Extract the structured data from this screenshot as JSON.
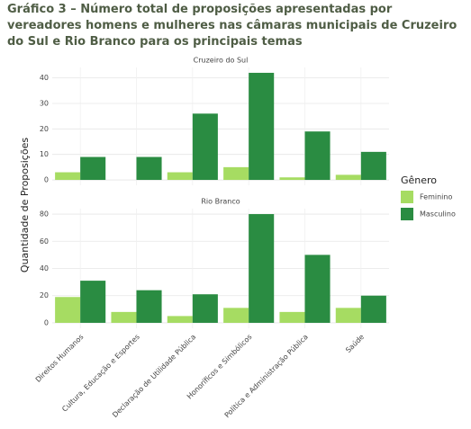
{
  "title": "Gráfico 3 – Número total de proposições apresentadas por vereadores homens e mulheres nas câmaras municipais de Cruzeiro do Sul e Rio Branco para os principais temas",
  "chart_data": {
    "type": "bar",
    "ylabel": "Quantidade de Proposições",
    "legend_title": "Gênero",
    "categories": [
      "Direitos Humanos",
      "Cultura, Educação e Esportes",
      "Declaração de Utilidade Pública",
      "Honoríficos e Simbólicos",
      "Política e Administração Pública",
      "Saúde"
    ],
    "series": [
      {
        "name": "Feminino",
        "color": "#a6dc62"
      },
      {
        "name": "Masculino",
        "color": "#2a8c42"
      }
    ],
    "grid": true,
    "facets": [
      {
        "title": "Cruzeiro do Sul",
        "ylim": [
          -2.1,
          44.1
        ],
        "yticks": [
          0,
          10,
          20,
          30,
          40
        ],
        "series_values": [
          [
            3,
            0,
            3,
            5,
            1,
            2
          ],
          [
            9,
            9,
            26,
            42,
            19,
            11
          ]
        ]
      },
      {
        "title": "Rio Branco",
        "ylim": [
          -4,
          84
        ],
        "yticks": [
          0,
          20,
          40,
          60,
          80
        ],
        "series_values": [
          [
            19,
            8,
            5,
            11,
            8,
            11
          ],
          [
            31,
            24,
            21,
            80,
            50,
            20
          ]
        ]
      }
    ]
  }
}
